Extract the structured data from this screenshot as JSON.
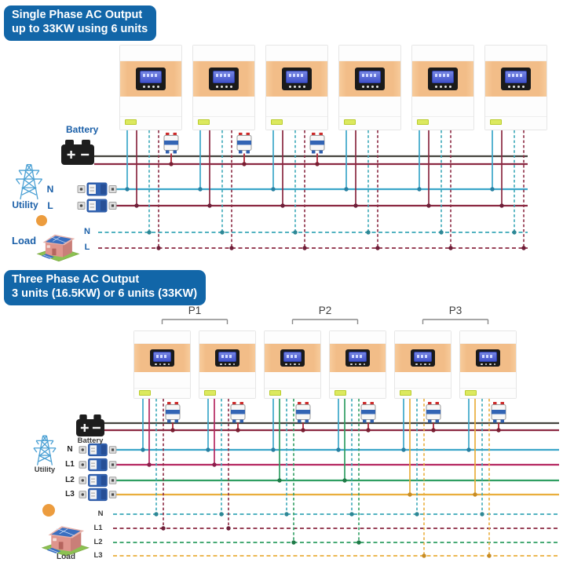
{
  "banners": {
    "single_phase": {
      "line1": "Single Phase AC Output",
      "line2": "up to 33KW using 6 units"
    },
    "three_phase": {
      "line1": "Three Phase AC Output",
      "line2": "3 units (16.5KW) or 6 units (33KW)"
    }
  },
  "single_phase": {
    "unit_count": 6,
    "battery_label": "Battery",
    "utility_label": "Utility",
    "load_label": "Load",
    "utility_lines": [
      "N",
      "L"
    ],
    "load_lines": [
      "N",
      "L"
    ]
  },
  "three_phase": {
    "unit_count": 6,
    "phase_groups": [
      "P1",
      "P2",
      "P3"
    ],
    "battery_label": "Battery",
    "utility_label": "Utility",
    "load_label": "Load",
    "utility_lines": [
      "N",
      "L1",
      "L2",
      "L3"
    ],
    "load_lines": [
      "N",
      "L1",
      "L2",
      "L3"
    ]
  },
  "colors": {
    "banner_blue": "#1266a8",
    "label_blue": "#1a5fa8",
    "label_dark": "#3a3a3a",
    "wire_neutral": "#3ba6c9",
    "wire_line_maroon": "#8b2942",
    "wire_l1": "#b52861",
    "wire_l2": "#2f9e62",
    "wire_l3": "#e9ae3c",
    "wire_battery_plus": "#45443f",
    "wire_load_neutral": "#3aa8b8",
    "inverter_band_orange": "#f2bd88",
    "breaker_blue": "#3264b4",
    "display_screen_blue": "#4f63d2",
    "sun_orange": "#ec9c3e",
    "tower_blue": "#4aa0d4",
    "house_green": "#8cc152",
    "house_pink": "#df958d",
    "panel_blue": "#3a6fc0"
  }
}
